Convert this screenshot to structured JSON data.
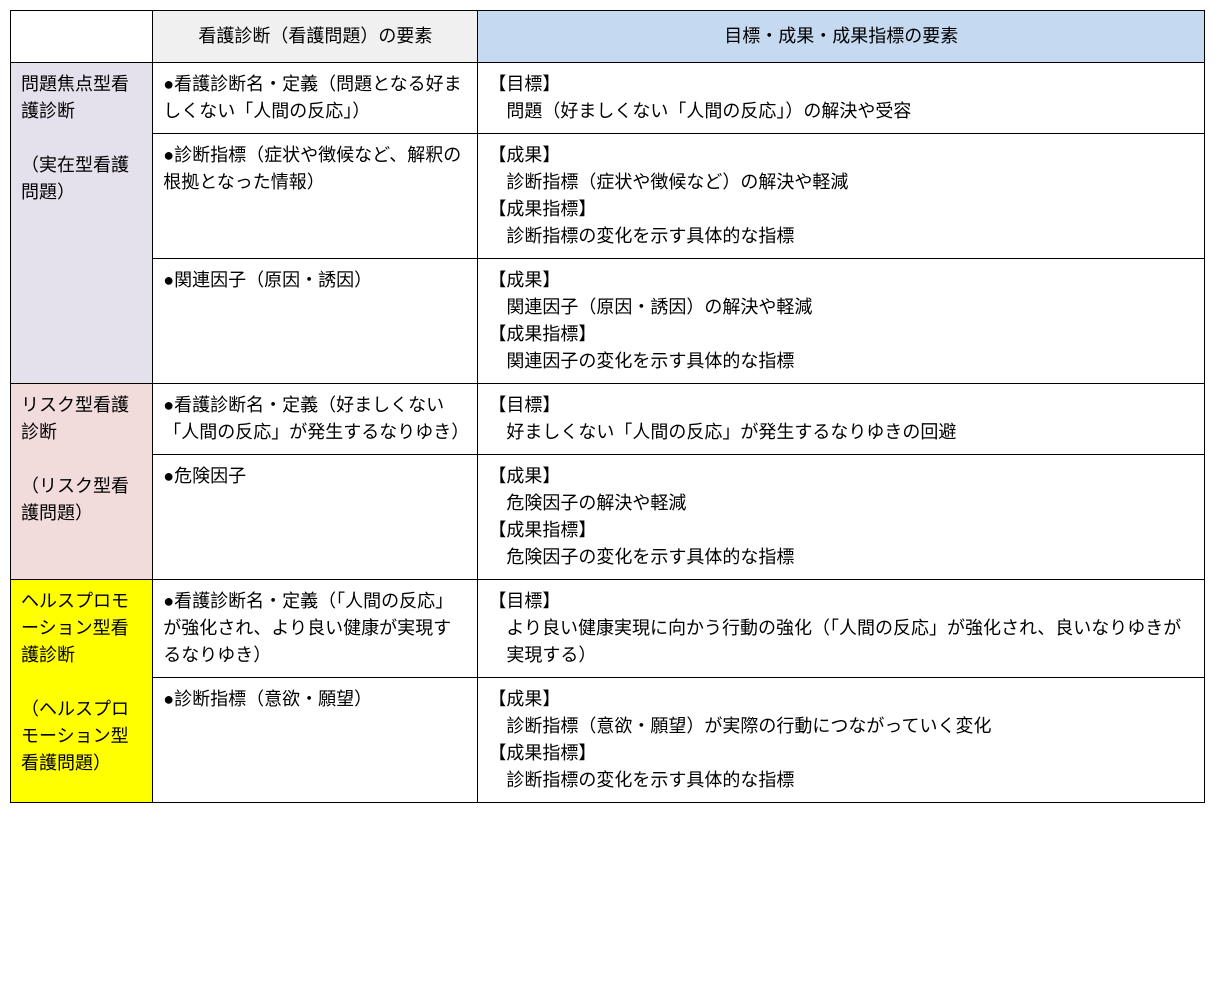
{
  "colors": {
    "header_diag_bg": "#f0f0f0",
    "header_goal_bg": "#c5d9f1",
    "cat_purple": "#e4e0ec",
    "cat_pink": "#f2dcdb",
    "cat_yellow": "#ffff00",
    "border": "#000000",
    "text": "#000000",
    "page_bg": "#ffffff"
  },
  "typography": {
    "font_family": "Hiragino Sans / Meiryo",
    "font_size_pt": 14,
    "line_height": 1.5
  },
  "table": {
    "headers": {
      "diag": "看護診断（看護問題）の要素",
      "goal": "目標・成果・成果指標の要素"
    },
    "sections": [
      {
        "id": "problem_focus",
        "bg_class": "cat-purple",
        "cat_line1": "問題焦点型看護診断",
        "cat_line2": "（実在型看護問題）",
        "rows": [
          {
            "diag": "●看護診断名・定義（問題となる好ましくない「人間の反応」）",
            "goal_h1": "【目標】",
            "goal_b1": "問題（好ましくない「人間の反応」）の解決や受容"
          },
          {
            "diag": "●診断指標（症状や徴候など、解釈の根拠となった情報）",
            "goal_h1": "【成果】",
            "goal_b1": "診断指標（症状や徴候など）の解決や軽減",
            "goal_h2": "【成果指標】",
            "goal_b2": "診断指標の変化を示す具体的な指標"
          },
          {
            "diag": "●関連因子（原因・誘因）",
            "goal_h1": "【成果】",
            "goal_b1": "関連因子（原因・誘因）の解決や軽減",
            "goal_h2": "【成果指標】",
            "goal_b2": "関連因子の変化を示す具体的な指標"
          }
        ]
      },
      {
        "id": "risk",
        "bg_class": "cat-pink",
        "cat_line1": "リスク型看護診断",
        "cat_line2": "（リスク型看護問題）",
        "rows": [
          {
            "diag": "●看護診断名・定義（好ましくない「人間の反応」が発生するなりゆき）",
            "goal_h1": "【目標】",
            "goal_b1": "好ましくない「人間の反応」が発生するなりゆきの回避"
          },
          {
            "diag": "●危険因子",
            "goal_h1": "【成果】",
            "goal_b1": "危険因子の解決や軽減",
            "goal_h2": "【成果指標】",
            "goal_b2": "危険因子の変化を示す具体的な指標"
          }
        ]
      },
      {
        "id": "health_promotion",
        "bg_class": "cat-yellow",
        "cat_line1": "ヘルスプロモーション型看護診断",
        "cat_line2": "（ヘルスプロモーション型看護問題）",
        "rows": [
          {
            "diag": "●看護診断名・定義（「人間の反応」が強化され、より良い健康が実現するなりゆき）",
            "goal_h1": "【目標】",
            "goal_b1": "より良い健康実現に向かう行動の強化（「人間の反応」が強化され、良いなりゆきが実現する）"
          },
          {
            "diag": "●診断指標（意欲・願望）",
            "goal_h1": "【成果】",
            "goal_b1": "診断指標（意欲・願望）が実際の行動につながっていく変化",
            "goal_h2": "【成果指標】",
            "goal_b2": "診断指標の変化を示す具体的な指標"
          }
        ]
      }
    ]
  }
}
